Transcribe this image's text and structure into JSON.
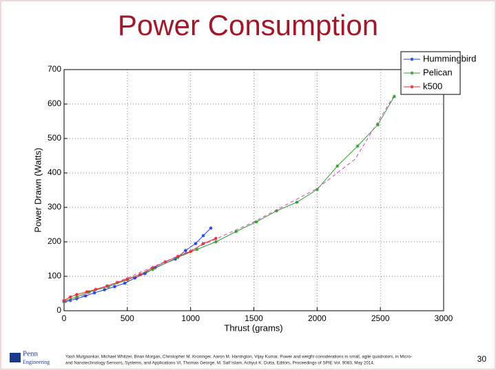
{
  "chart_data": {
    "type": "line",
    "title": "Power Consumption",
    "xlabel": "Thrust (grams)",
    "ylabel": "Power Drawn (Watts)",
    "xlim": [
      0,
      3000
    ],
    "xticks": [
      0,
      500,
      1000,
      1500,
      2000,
      2500,
      3000
    ],
    "ylim": [
      0,
      700
    ],
    "yticks": [
      0,
      100,
      200,
      300,
      400,
      500,
      600,
      700
    ],
    "grid": true,
    "legend": "northeast",
    "series": [
      {
        "name": "Hummingbird",
        "color": "#2040e0",
        "x": [
          0,
          50,
          100,
          170,
          240,
          320,
          400,
          480,
          560,
          640,
          720,
          880,
          960,
          1040,
          1100,
          1160
        ],
        "values": [
          26,
          30,
          35,
          43,
          52,
          61,
          70,
          80,
          95,
          108,
          125,
          150,
          175,
          195,
          218,
          240
        ]
      },
      {
        "name": "Pelican",
        "color": "#30a030",
        "x": [
          0,
          100,
          200,
          350,
          500,
          700,
          900,
          1050,
          1200,
          1360,
          1520,
          1680,
          1840,
          2000,
          2160,
          2320,
          2480,
          2610
        ],
        "values": [
          28,
          40,
          55,
          70,
          90,
          120,
          155,
          178,
          200,
          230,
          258,
          290,
          315,
          352,
          420,
          478,
          540,
          622
        ]
      },
      {
        "name": "k500",
        "color": "#e03030",
        "x": [
          0,
          50,
          100,
          180,
          250,
          340,
          420,
          500,
          600,
          700,
          800,
          900,
          1000,
          1100,
          1200
        ],
        "values": [
          30,
          40,
          47,
          55,
          62,
          72,
          82,
          92,
          105,
          125,
          142,
          158,
          172,
          195,
          210
        ]
      },
      {
        "color": "#d040c0",
        "dashed": true,
        "x": [
          0,
          500,
          1000,
          1500,
          2000,
          2300,
          2600
        ],
        "values": [
          22,
          95,
          175,
          258,
          355,
          440,
          620
        ]
      }
    ]
  },
  "footer": {
    "logo": [
      "Penn",
      "Engineering"
    ],
    "citation": [
      "Yash Mulgaonkar, Michael Whitzer, Brian Morgan, Christopher M. Kroninger, Aaron M. Harrington, Vijay Kumar, Power and weight considerations in small, agile quadrotors, in Micro-",
      "and Nanotechnology Sensors, Systems, and Applications VI, Thomas George, M. Saif Islam, Achyut K. Dutta, Editors, Proceedings of SPIE Vol. 9083, May 2014."
    ],
    "page": "30"
  }
}
